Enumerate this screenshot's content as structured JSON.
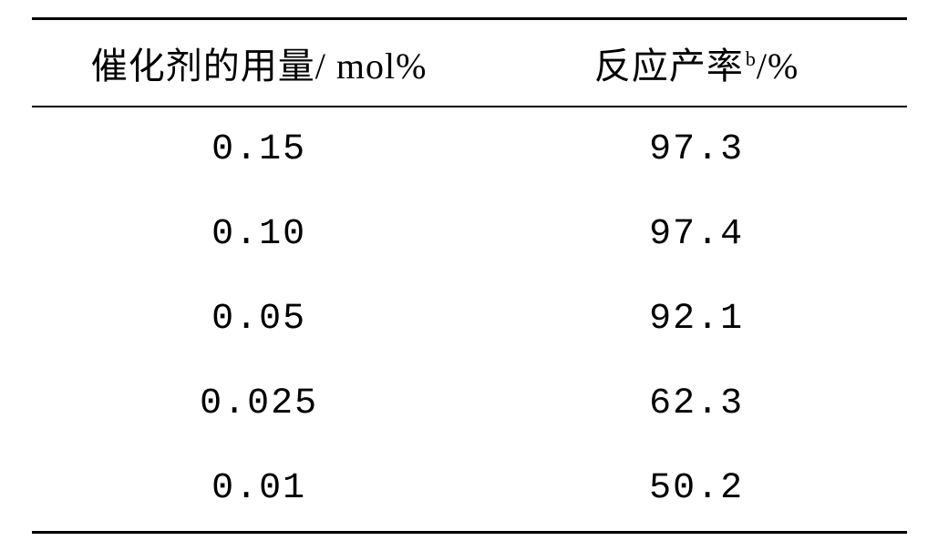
{
  "table": {
    "columns": [
      {
        "label_prefix": "催化剂的用量/ ",
        "label_unit": "mol%",
        "superscript": ""
      },
      {
        "label_prefix": "反应产率",
        "label_unit": "/%",
        "superscript": "b"
      }
    ],
    "rows": [
      [
        "0.15",
        "97.3"
      ],
      [
        "0.10",
        "97.4"
      ],
      [
        "0.05",
        "92.1"
      ],
      [
        "0.025",
        "62.3"
      ],
      [
        "0.01",
        "50.2"
      ]
    ],
    "styling": {
      "background_color": "#ffffff",
      "text_color": "#000000",
      "border_color": "#000000",
      "top_border_width": 3,
      "header_bottom_border_width": 2,
      "bottom_border_width": 3,
      "header_fontsize": 40,
      "cell_fontsize": 40,
      "superscript_fontsize": 22,
      "font_family": "SimSun",
      "col_widths": [
        "52%",
        "48%"
      ]
    }
  }
}
